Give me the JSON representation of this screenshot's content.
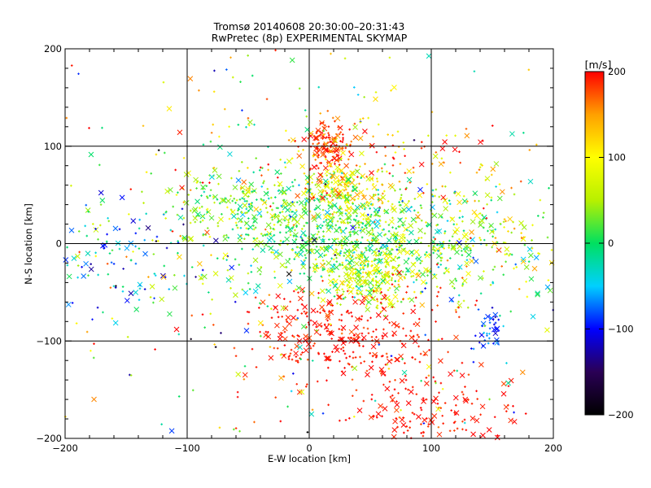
{
  "chart_data": {
    "type": "scatter",
    "title": "Tromsø 20140608 20:30:00–20:31:43",
    "subtitle": "RwPretec (8p) EXPERIMENTAL SKYMAP",
    "xlabel": "E-W location [km]",
    "ylabel": "N-S location [km]",
    "xlim": [
      -200,
      200
    ],
    "ylim": [
      -200,
      200
    ],
    "xticks": [
      "-200",
      "-100",
      "0",
      "100",
      "200"
    ],
    "yticks": [
      "-200",
      "-100",
      "0",
      "100",
      "200"
    ],
    "grid": true,
    "grid_values": [
      -100,
      0,
      100
    ],
    "markers": [
      "x",
      "+"
    ],
    "colorbar": {
      "label": "[m/s]",
      "range": [
        -200,
        200
      ],
      "ticks": [
        "-200",
        "-100",
        "0",
        "100",
        "200"
      ],
      "colors": [
        "#000000",
        "#2a0055",
        "#0000ff",
        "#00d0ff",
        "#00e060",
        "#b8f000",
        "#ffff00",
        "#ffa000",
        "#ff0000"
      ]
    },
    "clusters": [
      {
        "cx": 15,
        "cy": 100,
        "sx": 10,
        "sy": 12,
        "n": 120,
        "v": 185,
        "vs": 15
      },
      {
        "cx": 30,
        "cy": 55,
        "sx": 18,
        "sy": 15,
        "n": 180,
        "v": 100,
        "vs": 40
      },
      {
        "cx": 25,
        "cy": 10,
        "sx": 40,
        "sy": 25,
        "n": 520,
        "v": 20,
        "vs": 35
      },
      {
        "cx": -50,
        "cy": 35,
        "sx": 35,
        "sy": 20,
        "n": 220,
        "v": 30,
        "vs": 35
      },
      {
        "cx": 50,
        "cy": -35,
        "sx": 20,
        "sy": 15,
        "n": 220,
        "v": 75,
        "vs": 30
      },
      {
        "cx": 30,
        "cy": -95,
        "sx": 40,
        "sy": 25,
        "n": 320,
        "v": 195,
        "vs": 10
      },
      {
        "cx": 100,
        "cy": -175,
        "sx": 35,
        "sy": 20,
        "n": 150,
        "v": 195,
        "vs": 10
      },
      {
        "cx": 120,
        "cy": 0,
        "sx": 50,
        "sy": 30,
        "n": 360,
        "v": 40,
        "vs": 60
      },
      {
        "cx": 148,
        "cy": -88,
        "sx": 6,
        "sy": 12,
        "n": 40,
        "v": -90,
        "vs": 20
      },
      {
        "cx": 60,
        "cy": 90,
        "sx": 50,
        "sy": 25,
        "n": 120,
        "v": 160,
        "vs": 50
      },
      {
        "cx": -140,
        "cy": -10,
        "sx": 40,
        "sy": 30,
        "n": 120,
        "v": -40,
        "vs": 60
      },
      {
        "cx": 0,
        "cy": 0,
        "sx": 130,
        "sy": 120,
        "n": 500,
        "v": 60,
        "vs": 110
      }
    ]
  }
}
